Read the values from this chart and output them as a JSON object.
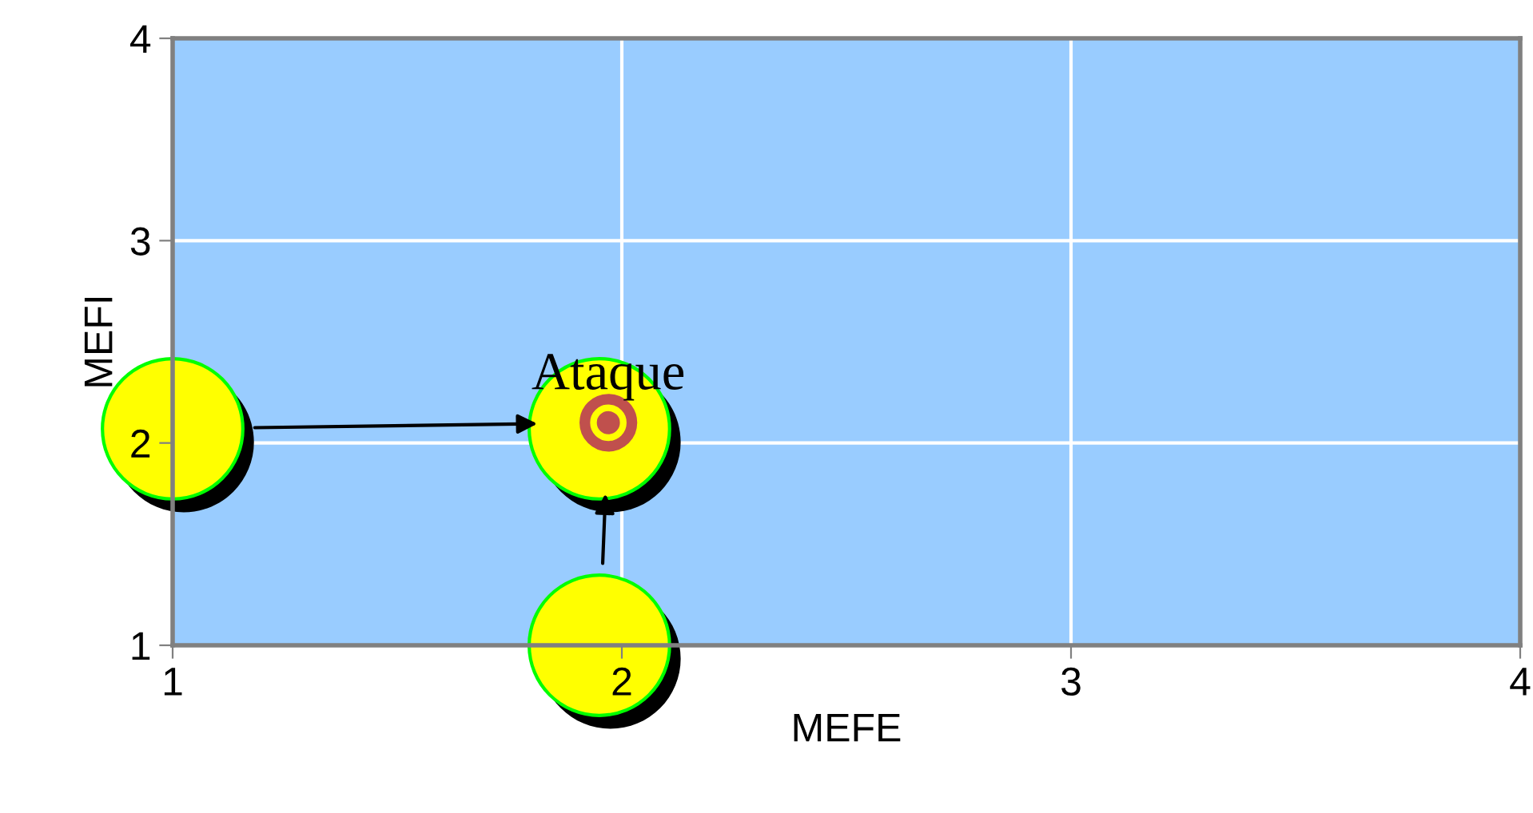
{
  "chart_data": {
    "type": "scatter",
    "xlabel": "MEFE",
    "ylabel": "MEFI",
    "xlim": [
      1,
      4
    ],
    "ylim": [
      1,
      4
    ],
    "xticks": [
      1,
      2,
      3,
      4
    ],
    "yticks": [
      1,
      2,
      3,
      4
    ],
    "grid": true,
    "marker": "circle",
    "series": [
      {
        "color": "#ffff00",
        "x": [
          1,
          1.95,
          1.95
        ],
        "values": [
          2.07,
          2.07,
          1.0
        ]
      },
      {
        "name": "Ataque",
        "color": "#c0504d",
        "x": [
          1.97
        ],
        "values": [
          2.1
        ]
      }
    ]
  }
}
